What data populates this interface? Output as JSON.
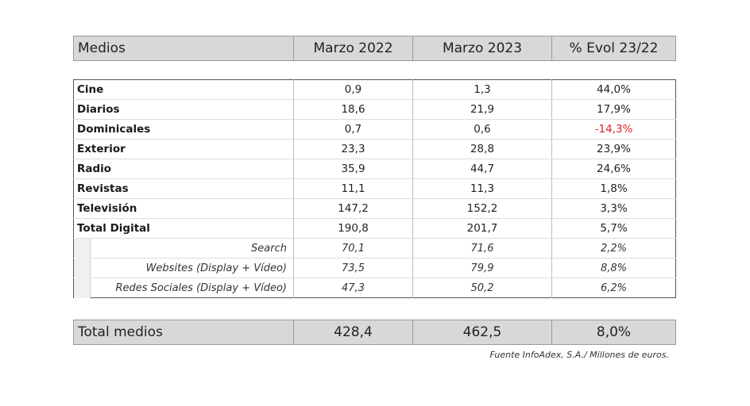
{
  "header": {
    "col_name": "Medios",
    "col_2022": "Marzo 2022",
    "col_2023": "Marzo 2023",
    "col_evol": "% Evol 23/22"
  },
  "rows": [
    {
      "name": "Cine",
      "v2022": "0,9",
      "v2023": "1,3",
      "evol": "44,0%"
    },
    {
      "name": "Diarios",
      "v2022": "18,6",
      "v2023": "21,9",
      "evol": "17,9%"
    },
    {
      "name": "Dominicales",
      "v2022": "0,7",
      "v2023": "0,6",
      "evol": "-14,3%"
    },
    {
      "name": "Exterior",
      "v2022": "23,3",
      "v2023": "28,8",
      "evol": "23,9%"
    },
    {
      "name": "Radio",
      "v2022": "35,9",
      "v2023": "44,7",
      "evol": "24,6%"
    },
    {
      "name": "Revistas",
      "v2022": "11,1",
      "v2023": "11,3",
      "evol": "1,8%"
    },
    {
      "name": "Televisión",
      "v2022": "147,2",
      "v2023": "152,2",
      "evol": "3,3%"
    },
    {
      "name": "Total Digital",
      "v2022": "190,8",
      "v2023": "201,7",
      "evol": "5,7%"
    }
  ],
  "subrows": [
    {
      "name": "Search",
      "v2022": "70,1",
      "v2023": "71,6",
      "evol": "2,2%"
    },
    {
      "name": "Websites (Display + Vídeo)",
      "v2022": "73,5",
      "v2023": "79,9",
      "evol": "8,8%"
    },
    {
      "name": "Redes Sociales (Display + Vídeo)",
      "v2022": "47,3",
      "v2023": "50,2",
      "evol": "6,2%"
    }
  ],
  "total": {
    "name": "Total medios",
    "v2022": "428,4",
    "v2023": "462,5",
    "evol": "8,0%"
  },
  "source": "Fuente InfoAdex, S.A./ Millones de euros.",
  "colors": {
    "header_bg": "#d8d8d8",
    "negative": "#e0202a"
  }
}
